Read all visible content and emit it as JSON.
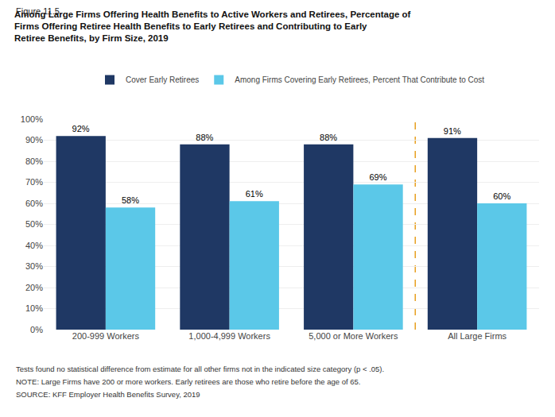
{
  "chart_data": {
    "type": "bar",
    "annotations": [
      "Figure 11.5"
    ],
    "title": "Among Large Firms Offering Health Benefits to Active Workers and Retirees, Percentage of\nFirms Offering Retiree Health Benefits to Early Retirees and Contributing to Early\nRetiree Benefits, by Firm Size, 2019",
    "footnotes": [
      "Tests found no statistical difference from estimate for all other firms not in the indicated size category (p < .05).",
      "NOTE: Large Firms have 200 or more workers. Early retirees are those who retire before the age of 65.",
      "SOURCE: KFF Employer Health Benefits Survey, 2019"
    ],
    "categories": [
      "200-999 Workers",
      "1,000-4,999 Workers",
      "5,000 or More Workers",
      "All Large Firms"
    ],
    "series": [
      {
        "name": "Cover Early Retirees",
        "color": "#1F3864",
        "values": [
          92,
          88,
          88,
          91
        ],
        "value_labels": [
          "92%",
          "88%",
          "88%",
          "91%"
        ]
      },
      {
        "name": "Among Firms Covering Early Retirees, Percent That Contribute to Cost",
        "color": "#5BC8E8",
        "values": [
          58,
          61,
          69,
          60
        ],
        "value_labels": [
          "58%",
          "61%",
          "69%",
          "60%"
        ]
      }
    ],
    "separator": {
      "after": "5,000 or More Workers",
      "color": "#E8A020",
      "line_style": "dashed"
    },
    "ylim": [
      0,
      100
    ],
    "yticks": [
      {
        "value": 0,
        "label": "0%"
      },
      {
        "value": 10,
        "label": "10%"
      },
      {
        "value": 20,
        "label": "20%"
      },
      {
        "value": 30,
        "label": "30%"
      },
      {
        "value": 40,
        "label": "40%"
      },
      {
        "value": 50,
        "label": "50%"
      },
      {
        "value": 60,
        "label": "60%"
      },
      {
        "value": 70,
        "label": "70%"
      },
      {
        "value": 80,
        "label": "80%"
      },
      {
        "value": 90,
        "label": "90%"
      },
      {
        "value": 100,
        "label": "100%"
      }
    ],
    "grid": true,
    "legend": "top",
    "data_labels": true
  }
}
